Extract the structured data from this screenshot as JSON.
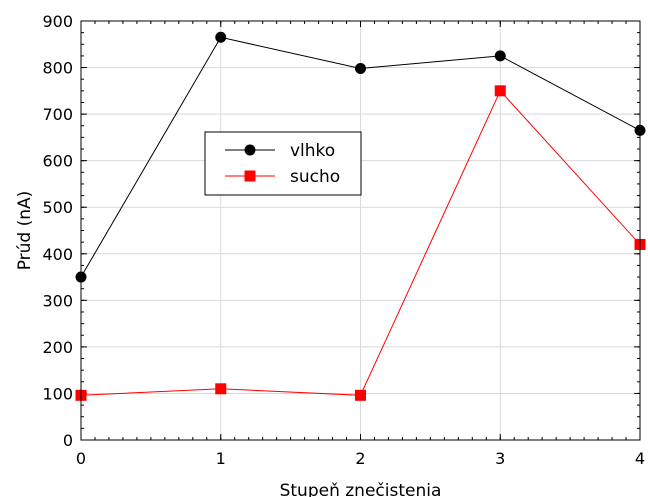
{
  "chart_data": {
    "type": "line",
    "title": "",
    "xlabel": "Stupeň znečistenia",
    "ylabel": "Prúd (nA)",
    "xlim": [
      0,
      4
    ],
    "ylim": [
      0,
      900
    ],
    "x": [
      0,
      1,
      2,
      3,
      4
    ],
    "xticks": [
      "0",
      "1",
      "2",
      "3",
      "4"
    ],
    "yticks": [
      "0",
      "100",
      "200",
      "300",
      "400",
      "500",
      "600",
      "700",
      "800",
      "900"
    ],
    "grid": true,
    "legend_position": "upper-left-center",
    "series": [
      {
        "name": "vlhko",
        "color": "#000000",
        "marker": "circle",
        "values": [
          350,
          865,
          798,
          825,
          665
        ]
      },
      {
        "name": "sucho",
        "color": "#ff0000",
        "marker": "square",
        "values": [
          96,
          110,
          96,
          750,
          420
        ]
      }
    ]
  }
}
